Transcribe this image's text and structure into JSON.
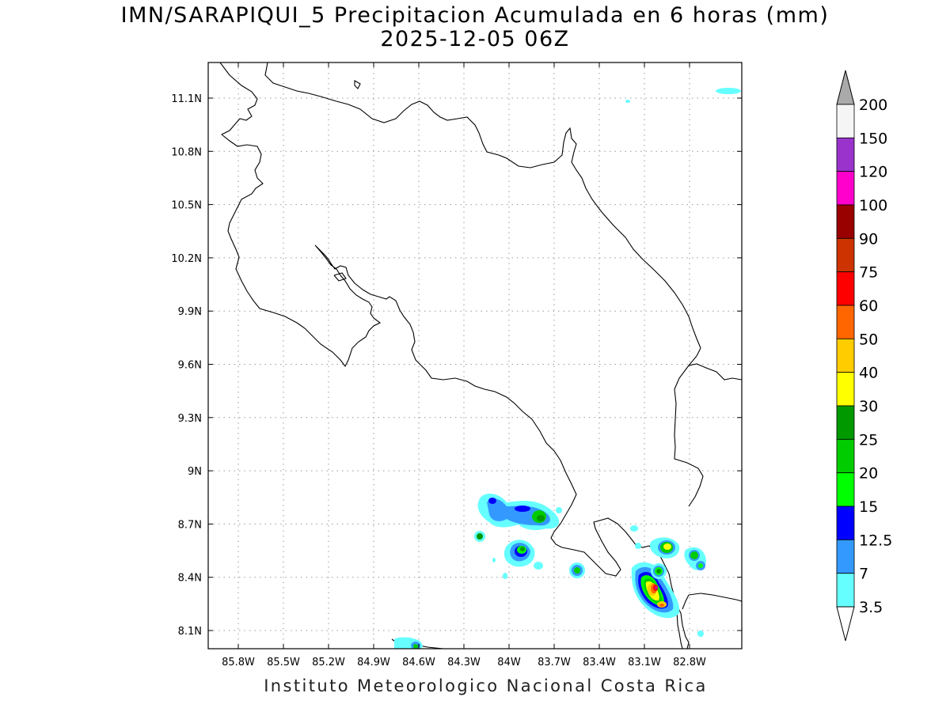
{
  "title_line1": "IMN/SARAPIQUI_5 Precipitacion Acumulada en 6 horas (mm)",
  "title_line2": "2025-12-05 06Z",
  "footer": "Instituto Meteorologico Nacional Costa Rica",
  "map": {
    "lon_labels": [
      "85.8W",
      "85.5W",
      "85.2W",
      "84.9W",
      "84.6W",
      "84.3W",
      "84W",
      "83.7W",
      "83.4W",
      "83.1W",
      "82.8W"
    ],
    "lat_labels": [
      "11.1N",
      "10.8N",
      "10.5N",
      "10.2N",
      "9.9N",
      "9.6N",
      "9.3N",
      "9N",
      "8.7N",
      "8.4N",
      "8.1N"
    ],
    "gridlines": true
  },
  "colorbar": {
    "levels": [
      "3.5",
      "7",
      "12.5",
      "15",
      "20",
      "25",
      "30",
      "40",
      "50",
      "60",
      "75",
      "90",
      "100",
      "120",
      "150",
      "200"
    ],
    "colors": [
      "#66ffff",
      "#3399ff",
      "#0000ff",
      "#00ff00",
      "#00cc00",
      "#009900",
      "#ffff00",
      "#ffcc00",
      "#ff6600",
      "#ff0000",
      "#cc3300",
      "#990000",
      "#ff00cc",
      "#9933cc",
      "#f5f5f5",
      "#aaaaaa"
    ]
  }
}
